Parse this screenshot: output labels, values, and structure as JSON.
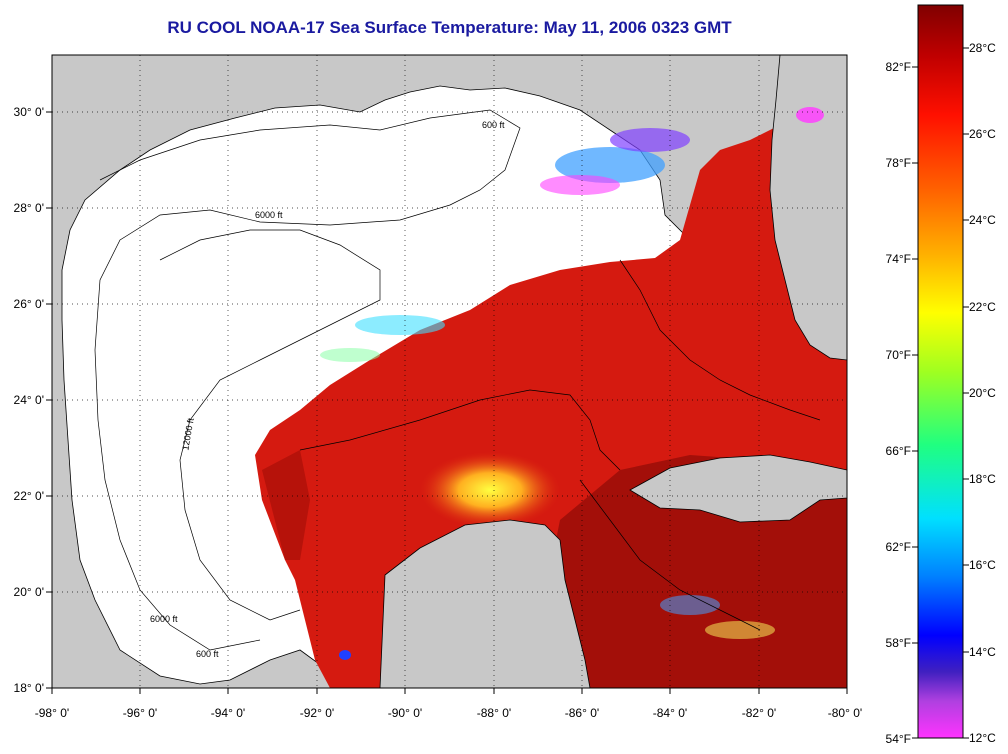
{
  "title": "RU COOL  NOAA-17  Sea Surface Temperature:  May 11, 2006 0323 GMT",
  "map": {
    "lon_ticks": [
      "-98° 0'",
      "-96° 0'",
      "-94° 0'",
      "-92° 0'",
      "-90° 0'",
      "-88° 0'",
      "-86° 0'",
      "-84° 0'",
      "-82° 0'",
      "-80° 0'"
    ],
    "lat_ticks": [
      "30° 0'",
      "28° 0'",
      "26° 0'",
      "24° 0'",
      "22° 0'",
      "20° 0'",
      "18° 0'"
    ],
    "lon_range": [
      -98,
      -80
    ],
    "lat_range": [
      18,
      31.2
    ],
    "grid": "dotted",
    "contour_labels": [
      "600 ft",
      "6000 ft",
      "12000 ft"
    ],
    "colors": {
      "land": "#c8c8c8",
      "cloud_mask": "#ffffff",
      "sst_warm": "#d51a10",
      "sst_hot": "#8a0c08",
      "title": "#1a1aa0"
    }
  },
  "colorbar": {
    "celsius_labels": [
      "28°C",
      "26°C",
      "24°C",
      "22°C",
      "20°C",
      "18°C",
      "16°C",
      "14°C",
      "12°C"
    ],
    "fahrenheit_labels": [
      "82°F",
      "78°F",
      "74°F",
      "70°F",
      "66°F",
      "62°F",
      "58°F",
      "54°F"
    ],
    "range_celsius": [
      12,
      29.3
    ],
    "range_fahrenheit": [
      54,
      84.7
    ]
  }
}
